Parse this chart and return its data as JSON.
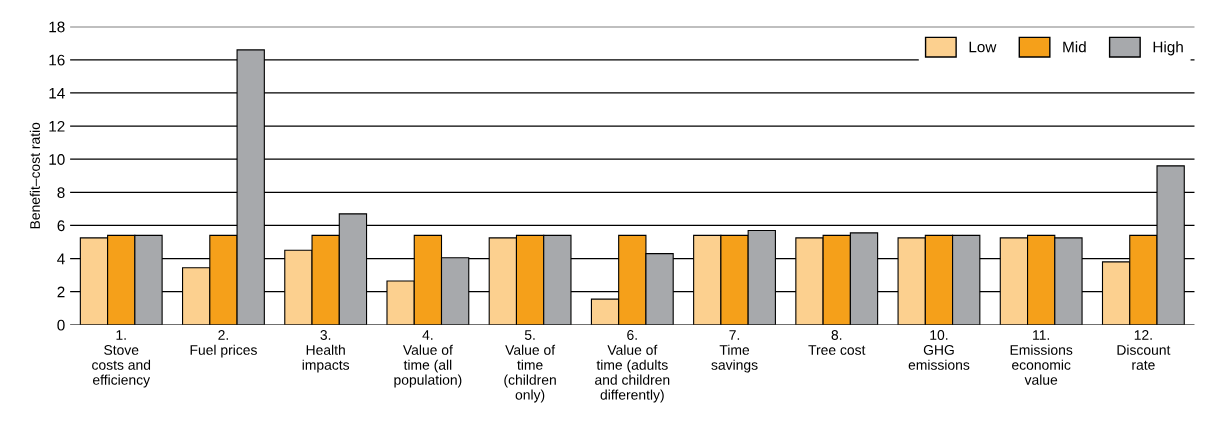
{
  "chart_data": {
    "type": "bar",
    "ylabel": "Benefit–cost ratio",
    "categories": [
      "1.\nStove\ncosts and\nefficiency",
      "2.\nFuel prices",
      "3.\nHealth\nimpacts",
      "4.\nValue of\ntime (all\npopulation)",
      "5.\nValue of\ntime\n(children\nonly)",
      "6.\nValue of\ntime (adults\nand children\ndifferently)",
      "7.\nTime\nsavings",
      "8.\nTree cost",
      "10.\nGHG\nemissions",
      "11.\nEmissions\neconomic\nvalue",
      "12.\nDiscount\nrate"
    ],
    "series": [
      {
        "name": "Low",
        "color": "#fcd08f",
        "values": [
          5.25,
          3.45,
          4.5,
          2.65,
          5.25,
          1.55,
          5.4,
          5.25,
          5.25,
          5.25,
          3.8
        ]
      },
      {
        "name": "Mid",
        "color": "#f5a01a",
        "values": [
          5.4,
          5.4,
          5.4,
          5.4,
          5.4,
          5.4,
          5.4,
          5.4,
          5.4,
          5.4,
          5.4
        ]
      },
      {
        "name": "High",
        "color": "#a7a9ac",
        "values": [
          5.4,
          16.6,
          6.7,
          4.05,
          5.4,
          4.3,
          5.7,
          5.55,
          5.4,
          5.25,
          9.6
        ]
      }
    ],
    "ylim": [
      0,
      18
    ],
    "yticks": [
      0,
      2,
      4,
      6,
      8,
      10,
      12,
      14,
      16,
      18
    ],
    "grid": "y",
    "legend": "top right"
  }
}
